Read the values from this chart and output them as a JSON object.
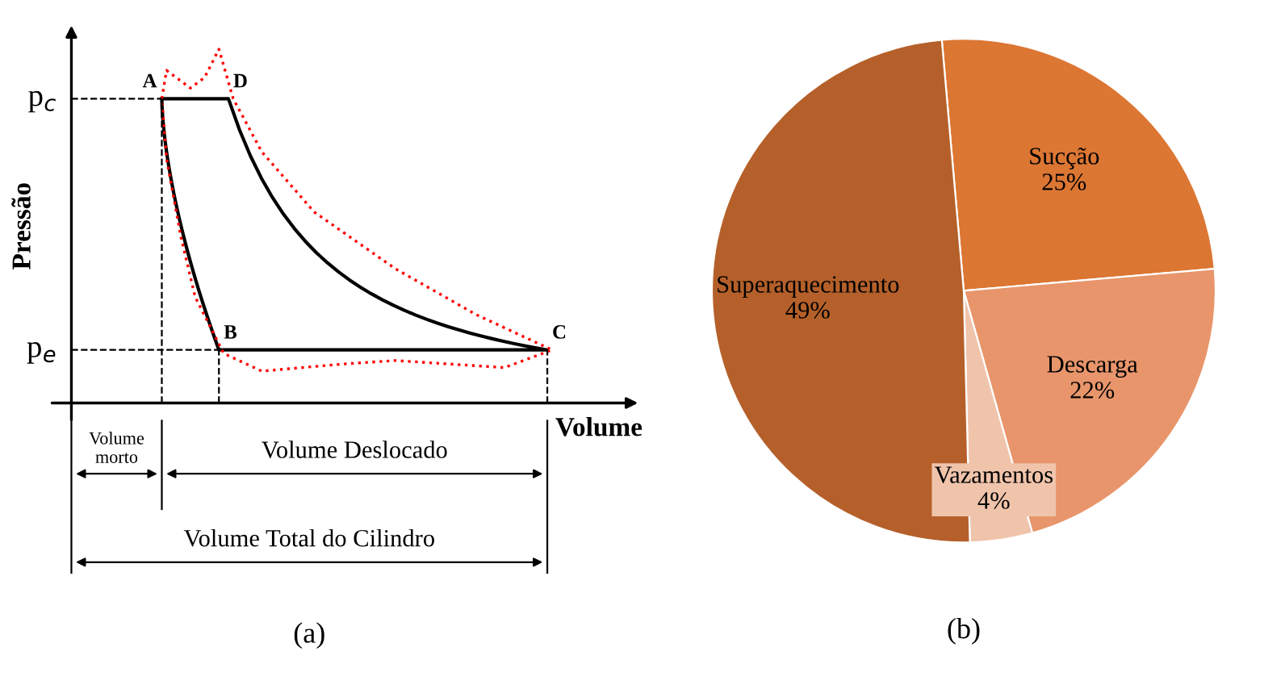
{
  "chart_data": [
    {
      "type": "other",
      "xlabel": "Volume",
      "ylabel": "Pressão",
      "annotations": [
        "p$_{c}$",
        "p$_{e}$",
        "A",
        "D",
        "B",
        "C",
        "Volume\nmorto",
        "Volume Deslocado",
        "Volume Total do Cilindro",
        "(a)"
      ]
    },
    {
      "type": "pie",
      "categories": [
        "Sucção",
        "Descarga",
        "Vazamentos",
        "Superaquecimento"
      ],
      "values": [
        25,
        22,
        4,
        49
      ],
      "value_labels": [
        "25%",
        "22%",
        "4%",
        "49%"
      ],
      "colors": [
        "#dc7633",
        "#e8956b",
        "#f0c4ab",
        "#b5602a"
      ],
      "annotations": [
        "(b)"
      ]
    }
  ]
}
